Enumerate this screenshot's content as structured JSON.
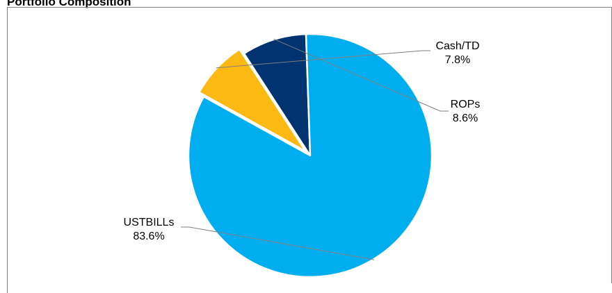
{
  "chart_data": {
    "type": "pie",
    "title": "Portfolio Composition",
    "categories": [
      "Cash/TD",
      "ROPs",
      "USTBILLs"
    ],
    "values": [
      7.8,
      8.6,
      83.6
    ],
    "value_labels": [
      "7.8%",
      "8.6%",
      "83.6%"
    ],
    "colors": [
      "#FDB913",
      "#003370",
      "#00AEEF"
    ],
    "exploded": "Cash/TD",
    "legend": "none"
  }
}
